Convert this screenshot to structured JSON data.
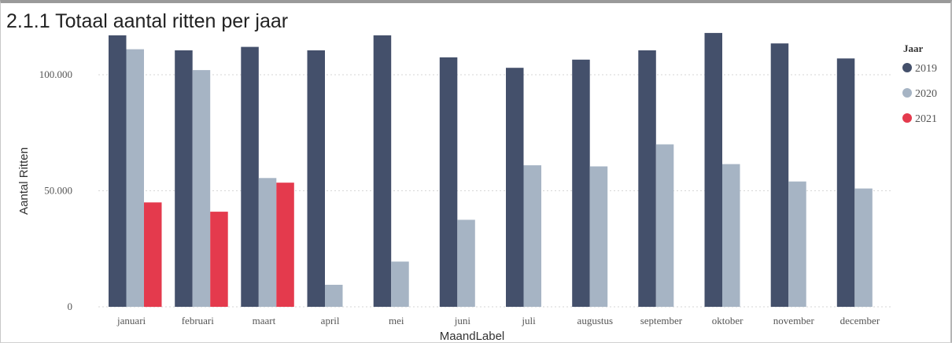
{
  "title": "2.1.1 Totaal aantal ritten per jaar",
  "chart_data": {
    "type": "bar",
    "title": "2.1.1 Totaal aantal ritten per jaar",
    "xlabel": "MaandLabel",
    "ylabel": "Aantal Ritten",
    "ylim": [
      0,
      120000
    ],
    "yticks": [
      0,
      50000,
      100000
    ],
    "ytick_labels": [
      "0",
      "50.000",
      "100.000"
    ],
    "grid": true,
    "legend_title": "Jaar",
    "legend_position": "right",
    "categories": [
      "januari",
      "februari",
      "maart",
      "april",
      "mei",
      "juni",
      "juli",
      "augustus",
      "september",
      "oktober",
      "november",
      "december"
    ],
    "series": [
      {
        "name": "2019",
        "color": "#44506b",
        "values": [
          117000,
          110500,
          112000,
          110500,
          117000,
          107500,
          103000,
          106500,
          110500,
          118000,
          113500,
          107000
        ]
      },
      {
        "name": "2020",
        "color": "#a6b4c4",
        "values": [
          111000,
          102000,
          55500,
          9500,
          19500,
          37500,
          61000,
          60500,
          70000,
          61500,
          54000,
          51000
        ]
      },
      {
        "name": "2021",
        "color": "#e43a4d",
        "values": [
          45000,
          41000,
          53500,
          null,
          null,
          null,
          null,
          null,
          null,
          null,
          null,
          null
        ]
      }
    ]
  }
}
